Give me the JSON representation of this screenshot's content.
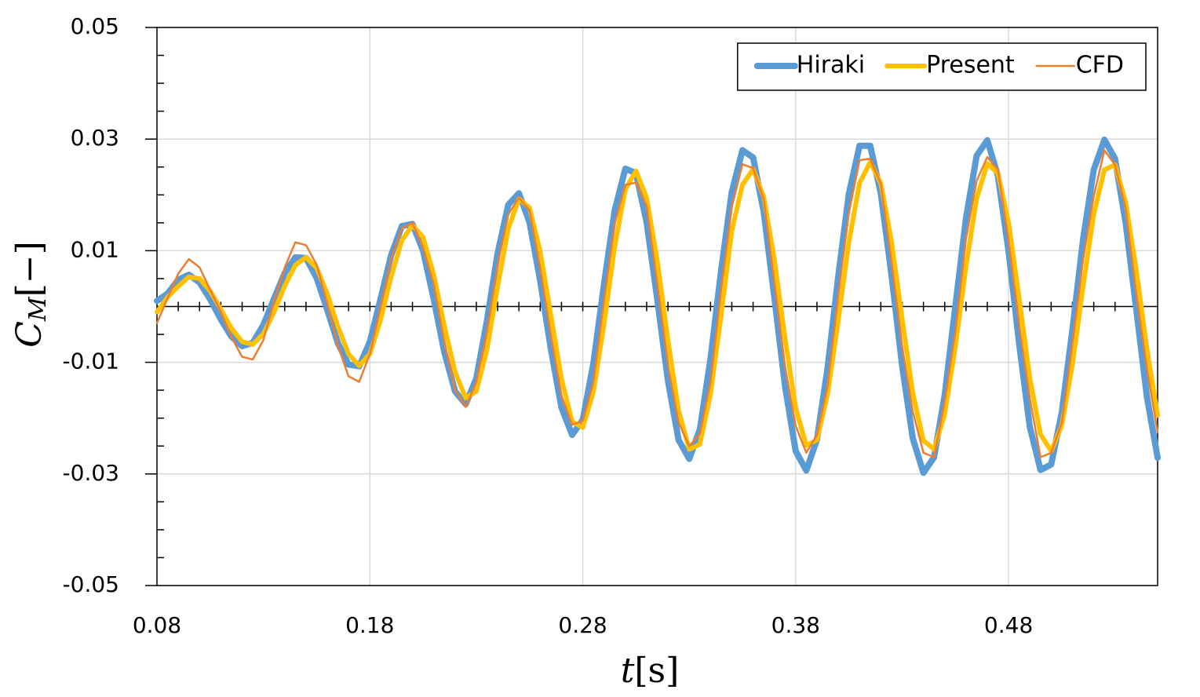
{
  "chart_data": {
    "type": "line",
    "xlabel": {
      "symbol": "t",
      "unit": "[s]"
    },
    "ylabel": {
      "symbol": "C",
      "subscript": "M",
      "unit": "[−]"
    },
    "xlim": [
      0.08,
      0.55
    ],
    "xticks": [
      0.08,
      0.18,
      0.28,
      0.38,
      0.48
    ],
    "ylim": [
      -0.05,
      0.05
    ],
    "yticks": [
      -0.05,
      -0.03,
      -0.01,
      0.01,
      0.03,
      0.05
    ],
    "grid": true,
    "legend": "upper right",
    "x": [
      0.08,
      0.085,
      0.09,
      0.095,
      0.1,
      0.105,
      0.11,
      0.115,
      0.12,
      0.125,
      0.13,
      0.135,
      0.14,
      0.145,
      0.15,
      0.155,
      0.16,
      0.165,
      0.17,
      0.175,
      0.18,
      0.185,
      0.19,
      0.195,
      0.2,
      0.205,
      0.21,
      0.215,
      0.22,
      0.225,
      0.23,
      0.235,
      0.24,
      0.245,
      0.25,
      0.255,
      0.26,
      0.265,
      0.27,
      0.275,
      0.28,
      0.285,
      0.29,
      0.295,
      0.3,
      0.305,
      0.31,
      0.315,
      0.32,
      0.325,
      0.33,
      0.335,
      0.34,
      0.345,
      0.35,
      0.355,
      0.36,
      0.365,
      0.37,
      0.375,
      0.38,
      0.385,
      0.39,
      0.395,
      0.4,
      0.405,
      0.41,
      0.415,
      0.42,
      0.425,
      0.43,
      0.435,
      0.44,
      0.445,
      0.45,
      0.455,
      0.46,
      0.465,
      0.47,
      0.475,
      0.48,
      0.485,
      0.49,
      0.495,
      0.5,
      0.505,
      0.51,
      0.515,
      0.52,
      0.525,
      0.53,
      0.535,
      0.54,
      0.545,
      0.55
    ],
    "series": [
      {
        "name": "Hiraki",
        "color": "#5b9bd5",
        "width": 8,
        "values": [
          0.001,
          0.0023,
          0.0048,
          0.0057,
          0.0043,
          0.0013,
          -0.0023,
          -0.0054,
          -0.0071,
          -0.0065,
          -0.0033,
          0.0014,
          0.006,
          0.0088,
          0.0087,
          0.0051,
          -0.0006,
          -0.0066,
          -0.0104,
          -0.0107,
          -0.0063,
          0.0013,
          0.0092,
          0.0144,
          0.0148,
          0.01,
          0.0013,
          -0.0082,
          -0.0152,
          -0.0175,
          -0.0129,
          -0.0025,
          0.0095,
          0.0182,
          0.0203,
          0.0151,
          0.0046,
          -0.0076,
          -0.0181,
          -0.023,
          -0.0203,
          -0.0102,
          0.0041,
          0.0172,
          0.0247,
          0.0239,
          0.0151,
          0.0013,
          -0.0133,
          -0.0239,
          -0.0273,
          -0.022,
          -0.0094,
          0.0065,
          0.0205,
          0.028,
          0.0267,
          0.017,
          0.0016,
          -0.0143,
          -0.0259,
          -0.0294,
          -0.0238,
          -0.011,
          0.0054,
          0.0202,
          0.0288,
          0.0288,
          0.0203,
          0.0057,
          -0.0106,
          -0.0236,
          -0.0298,
          -0.027,
          -0.0159,
          0,
          0.0159,
          0.027,
          0.0298,
          0.0234,
          0.0099,
          -0.0068,
          -0.0216,
          -0.0293,
          -0.0283,
          -0.019,
          -0.0041,
          0.0121,
          0.0245,
          0.0299,
          0.0265,
          0.015,
          -0.0006,
          -0.0162,
          -0.0271
        ]
      },
      {
        "name": "Present",
        "color": "#ffc000",
        "width": 6,
        "values": [
          -0.001,
          0.0017,
          0.0036,
          0.0053,
          0.005,
          0.0028,
          -0.0005,
          -0.0039,
          -0.0063,
          -0.0068,
          -0.0049,
          -0.001,
          0.0037,
          0.0074,
          0.0088,
          0.0069,
          0.0023,
          -0.0036,
          -0.0085,
          -0.0106,
          -0.0085,
          -0.0025,
          0.0053,
          0.0118,
          0.0146,
          0.0124,
          0.0057,
          -0.0035,
          -0.0117,
          -0.0164,
          -0.0152,
          -0.0077,
          0.0035,
          0.0139,
          0.0193,
          0.0177,
          0.0099,
          -0.0015,
          -0.0129,
          -0.0206,
          -0.0217,
          -0.0153,
          -0.0031,
          0.0107,
          0.021,
          0.0243,
          0.0195,
          0.0082,
          -0.006,
          -0.0186,
          -0.0256,
          -0.0247,
          -0.0157,
          -0.0015,
          0.0135,
          0.0218,
          0.0246,
          0.0197,
          0.0084,
          -0.0057,
          -0.0181,
          -0.0249,
          -0.0239,
          -0.0157,
          -0.0025,
          0.0115,
          0.0221,
          0.0259,
          0.0221,
          0.0117,
          -0.0022,
          -0.0154,
          -0.024,
          -0.0256,
          -0.0193,
          -0.0072,
          0.0072,
          0.0193,
          0.0256,
          0.0239,
          0.015,
          0.0014,
          -0.0128,
          -0.0229,
          -0.0259,
          -0.0213,
          -0.0104,
          0.0036,
          0.0165,
          0.0245,
          0.0254,
          0.0187,
          0.0065,
          -0.0076,
          -0.0195
        ]
      },
      {
        "name": "CFD",
        "color": "#ed7d31",
        "width": 2.5,
        "values": [
          -0.003,
          0.0015,
          0.0059,
          0.0085,
          0.007,
          0.003,
          -0.001,
          -0.0055,
          -0.009,
          -0.0095,
          -0.006,
          0.001,
          0.007,
          0.0115,
          0.011,
          0.0075,
          0.0005,
          -0.007,
          -0.0125,
          -0.0135,
          -0.0085,
          -0.0002,
          0.0085,
          0.014,
          0.015,
          0.0105,
          0.004,
          -0.0065,
          -0.015,
          -0.018,
          -0.0135,
          -0.0045,
          0.0075,
          0.0165,
          0.0195,
          0.0172,
          0.0068,
          -0.0052,
          -0.016,
          -0.0212,
          -0.0205,
          -0.0135,
          0.0012,
          0.0148,
          0.0218,
          0.0222,
          0.018,
          0.004,
          -0.0105,
          -0.0208,
          -0.025,
          -0.0228,
          -0.0135,
          0.0032,
          0.0178,
          0.0255,
          0.0248,
          0.0192,
          0.0042,
          -0.0108,
          -0.0214,
          -0.0262,
          -0.023,
          -0.0142,
          0.0021,
          0.0168,
          0.0262,
          0.0265,
          0.022,
          0.008,
          -0.0072,
          -0.0188,
          -0.0262,
          -0.027,
          -0.017,
          -0.0045,
          0.0122,
          0.0225,
          0.0268,
          0.0245,
          0.0118,
          -0.0035,
          -0.0165,
          -0.027,
          -0.0262,
          -0.0208,
          -0.0065,
          0.0085,
          0.0198,
          0.028,
          0.0254,
          0.0175,
          0.0022,
          -0.0112,
          -0.0225
        ]
      }
    ]
  }
}
